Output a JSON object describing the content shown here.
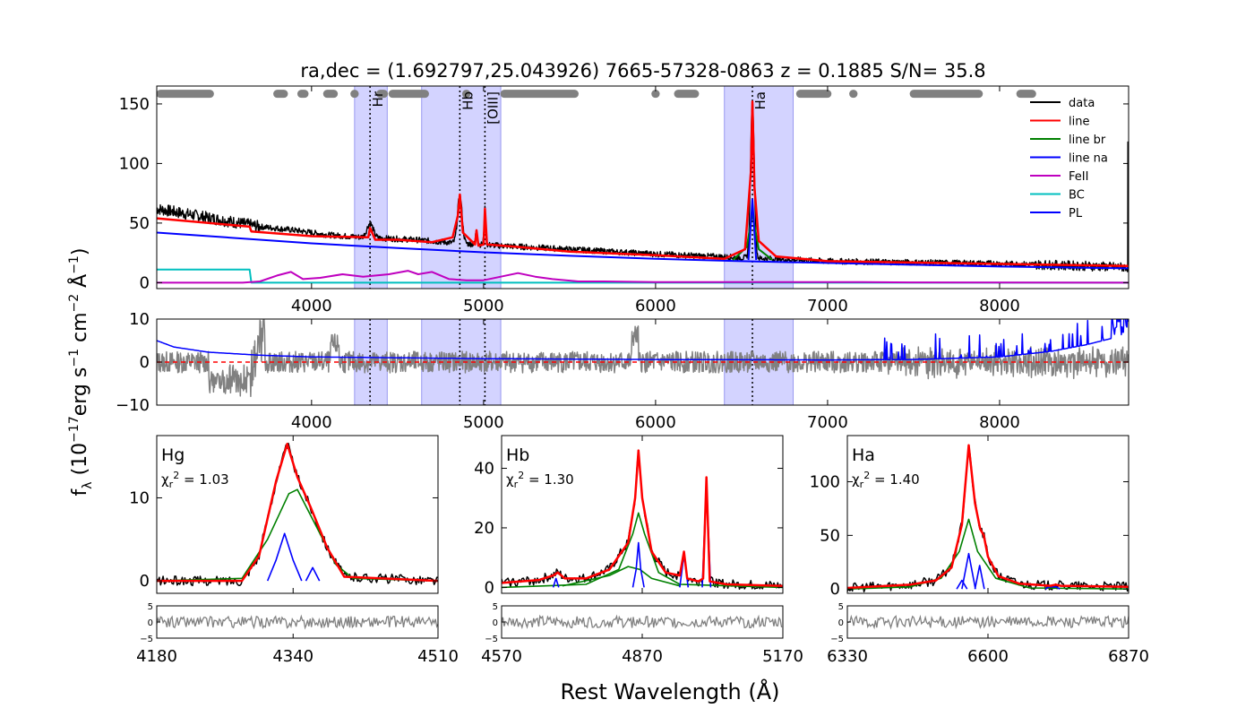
{
  "figure": {
    "title": "ra,dec = (1.692797,25.043926)   7665-57328-0863   z = 0.1885   S/N= 35.8",
    "ylabel_main": "f",
    "ylabel_sub": "λ",
    "ylabel_rest_a": " (10",
    "ylabel_exp_a": "−17",
    "ylabel_rest_b": "erg s",
    "ylabel_exp_b": "−1",
    "ylabel_rest_c": " cm",
    "ylabel_exp_c": "−2",
    "ylabel_rest_d": " Å",
    "ylabel_exp_d": "−1",
    "ylabel_rest_e": ")",
    "xlabel": "Rest Wavelength (Å)"
  },
  "colors": {
    "data": "#000000",
    "line": "#ff0000",
    "line_br": "#008000",
    "line_na": "#0000ff",
    "feii": "#bf00bf",
    "bc": "#00bfbf",
    "pl": "#0000ff",
    "residual": "#808080",
    "window": "#ccccff",
    "mask": "#808080"
  },
  "chart_data": [
    {
      "id": "main",
      "type": "line",
      "xlim": [
        3100,
        8750
      ],
      "ylim": [
        -5,
        165
      ],
      "xticks": [
        4000,
        5000,
        6000,
        7000,
        8000
      ],
      "yticks": [
        0,
        50,
        100,
        150
      ],
      "fit_windows": [
        [
          4250,
          4440
        ],
        [
          4640,
          5100
        ],
        [
          6400,
          6800
        ]
      ],
      "mask_segments": [
        [
          3100,
          3430
        ],
        [
          3780,
          3860
        ],
        [
          3920,
          3980
        ],
        [
          4070,
          4150
        ],
        [
          4230,
          4270
        ],
        [
          4400,
          4420
        ],
        [
          4450,
          4680
        ],
        [
          4880,
          4920
        ],
        [
          5100,
          5550
        ],
        [
          5980,
          6020
        ],
        [
          6110,
          6250
        ],
        [
          6820,
          7020
        ],
        [
          7130,
          7170
        ],
        [
          7480,
          7900
        ],
        [
          8100,
          8210
        ]
      ],
      "line_markers": [
        {
          "x": 4340,
          "label": "Hr"
        },
        {
          "x": 4862,
          "label": "Hb"
        },
        {
          "x": 5008,
          "label": "[OIII]"
        },
        {
          "x": 6563,
          "label": "Ha"
        }
      ],
      "legend": [
        "data",
        "line",
        "line br",
        "line na",
        "FeII",
        "BC",
        "PL"
      ],
      "series": {
        "data_trend": [
          [
            3100,
            62
          ],
          [
            3300,
            57
          ],
          [
            3500,
            52
          ],
          [
            3700,
            47
          ],
          [
            3900,
            44
          ],
          [
            4100,
            40
          ],
          [
            4300,
            38
          ],
          [
            4600,
            36
          ],
          [
            4860,
            33
          ],
          [
            5100,
            31
          ],
          [
            5500,
            28
          ],
          [
            6000,
            24
          ],
          [
            6500,
            21
          ],
          [
            7000,
            18
          ],
          [
            7500,
            17
          ],
          [
            8000,
            16
          ],
          [
            8500,
            14
          ],
          [
            8700,
            13
          ]
        ],
        "pl": [
          [
            3100,
            42
          ],
          [
            3500,
            38
          ],
          [
            4000,
            33
          ],
          [
            4500,
            29
          ],
          [
            5000,
            25.5
          ],
          [
            5500,
            22.5
          ],
          [
            6000,
            20
          ],
          [
            6500,
            18
          ],
          [
            7000,
            16.5
          ],
          [
            7500,
            15
          ],
          [
            8000,
            13.5
          ],
          [
            8500,
            12.5
          ],
          [
            8750,
            12
          ]
        ],
        "bc": [
          [
            3100,
            11
          ],
          [
            3640,
            11
          ],
          [
            3650,
            0
          ],
          [
            8750,
            0
          ]
        ],
        "feii": [
          [
            3100,
            0
          ],
          [
            3600,
            0
          ],
          [
            3700,
            1
          ],
          [
            3800,
            6
          ],
          [
            3880,
            9
          ],
          [
            3950,
            3
          ],
          [
            4050,
            4
          ],
          [
            4180,
            7
          ],
          [
            4300,
            5
          ],
          [
            4450,
            7
          ],
          [
            4560,
            10
          ],
          [
            4620,
            7
          ],
          [
            4700,
            9
          ],
          [
            4800,
            3
          ],
          [
            4900,
            2
          ],
          [
            5000,
            2
          ],
          [
            5100,
            5
          ],
          [
            5200,
            8
          ],
          [
            5300,
            5
          ],
          [
            5400,
            3
          ],
          [
            5550,
            1
          ],
          [
            5700,
            1
          ],
          [
            6000,
            0.5
          ],
          [
            6600,
            0.5
          ],
          [
            7200,
            0.5
          ],
          [
            7500,
            0.2
          ],
          [
            8750,
            0
          ]
        ],
        "line_red": [
          [
            3100,
            54
          ],
          [
            3640,
            47
          ],
          [
            3650,
            43
          ],
          [
            4000,
            39
          ],
          [
            4330,
            38
          ],
          [
            4340,
            46
          ],
          [
            4370,
            36
          ],
          [
            4500,
            36
          ],
          [
            4700,
            34
          ],
          [
            4820,
            38
          ],
          [
            4850,
            56
          ],
          [
            4862,
            74
          ],
          [
            4880,
            42
          ],
          [
            4950,
            32
          ],
          [
            4959,
            44
          ],
          [
            4970,
            31
          ],
          [
            5000,
            32
          ],
          [
            5008,
            62
          ],
          [
            5020,
            32
          ],
          [
            5200,
            30
          ],
          [
            5500,
            26
          ],
          [
            6000,
            23
          ],
          [
            6400,
            20
          ],
          [
            6520,
            28
          ],
          [
            6555,
            95
          ],
          [
            6563,
            152
          ],
          [
            6575,
            80
          ],
          [
            6600,
            35
          ],
          [
            6700,
            22
          ],
          [
            7000,
            18
          ],
          [
            8750,
            14
          ]
        ],
        "line_br": [
          [
            6450,
            19
          ],
          [
            6530,
            30
          ],
          [
            6563,
            58
          ],
          [
            6600,
            28
          ],
          [
            6680,
            19
          ]
        ],
        "line_na": [
          [
            6540,
            19
          ],
          [
            6563,
            70
          ],
          [
            6585,
            19
          ]
        ]
      },
      "peaks": [
        {
          "x": 4340,
          "height": 12,
          "width": 30
        },
        {
          "x": 4862,
          "height": 40,
          "width": 22
        },
        {
          "x": 4959,
          "height": 13,
          "width": 8
        },
        {
          "x": 5008,
          "height": 30,
          "width": 8
        },
        {
          "x": 6563,
          "height": 130,
          "width": 18
        }
      ]
    },
    {
      "id": "residual_main",
      "type": "line",
      "xlim": [
        3100,
        8750
      ],
      "ylim": [
        -10,
        10
      ],
      "xticks": [
        4000,
        5000,
        6000,
        7000,
        8000
      ],
      "yticks": [
        -10,
        0,
        10
      ],
      "fit_windows": [
        [
          4250,
          4440
        ],
        [
          4640,
          5100
        ],
        [
          6400,
          6800
        ]
      ],
      "line_markers": [
        {
          "x": 4340
        },
        {
          "x": 4862
        },
        {
          "x": 5008
        },
        {
          "x": 6563
        }
      ],
      "series": {
        "pl_curve": [
          [
            3100,
            5
          ],
          [
            3200,
            3.5
          ],
          [
            3400,
            2.3
          ],
          [
            3700,
            1.6
          ],
          [
            4000,
            1.2
          ],
          [
            4500,
            1.0
          ],
          [
            5000,
            0.8
          ],
          [
            6000,
            0.6
          ],
          [
            7000,
            0.5
          ],
          [
            7500,
            0.6
          ],
          [
            8000,
            1.2
          ],
          [
            8300,
            2.5
          ],
          [
            8500,
            4
          ],
          [
            8700,
            6
          ],
          [
            8750,
            7
          ]
        ],
        "residual_zero": 0
      }
    },
    {
      "id": "Hg",
      "type": "line",
      "label": "Hg",
      "chi2": "1.03",
      "xlim": [
        4180,
        4510
      ],
      "ylim": [
        -1.5,
        17.5
      ],
      "xticks": [
        4180,
        4340,
        4510
      ],
      "yticks": [
        0,
        10
      ],
      "series": {
        "line": [
          [
            4180,
            0
          ],
          [
            4280,
            0
          ],
          [
            4300,
            3
          ],
          [
            4320,
            12
          ],
          [
            4333,
            16.5
          ],
          [
            4345,
            12.5
          ],
          [
            4360,
            9
          ],
          [
            4380,
            4
          ],
          [
            4400,
            0.5
          ],
          [
            4510,
            0
          ]
        ],
        "line_br": [
          [
            4180,
            0
          ],
          [
            4280,
            0.3
          ],
          [
            4310,
            5
          ],
          [
            4335,
            10.5
          ],
          [
            4345,
            11
          ],
          [
            4365,
            7
          ],
          [
            4390,
            2
          ],
          [
            4410,
            0.3
          ],
          [
            4510,
            0
          ]
        ],
        "line_na_1": [
          [
            4310,
            0
          ],
          [
            4320,
            2.5
          ],
          [
            4330,
            5.7
          ],
          [
            4340,
            2.5
          ],
          [
            4350,
            0
          ]
        ],
        "line_na_2": [
          [
            4355,
            0
          ],
          [
            4363,
            1.6
          ],
          [
            4371,
            0
          ]
        ]
      }
    },
    {
      "id": "Hb",
      "type": "line",
      "label": "Hb",
      "chi2": "1.30",
      "xlim": [
        4570,
        5170
      ],
      "ylim": [
        -2,
        51
      ],
      "xticks": [
        4570,
        4870,
        5170
      ],
      "yticks": [
        0,
        20,
        40
      ],
      "series": {
        "line": [
          [
            4570,
            1.5
          ],
          [
            4650,
            2.5
          ],
          [
            4680,
            4
          ],
          [
            4690,
            5
          ],
          [
            4705,
            3
          ],
          [
            4750,
            3
          ],
          [
            4800,
            6
          ],
          [
            4840,
            15
          ],
          [
            4855,
            30
          ],
          [
            4862,
            46
          ],
          [
            4870,
            30
          ],
          [
            4890,
            12
          ],
          [
            4920,
            5
          ],
          [
            4950,
            4
          ],
          [
            4959,
            12
          ],
          [
            4966,
            3
          ],
          [
            4990,
            2
          ],
          [
            5000,
            3
          ],
          [
            5007,
            37
          ],
          [
            5014,
            2
          ],
          [
            5050,
            1
          ],
          [
            5170,
            0.5
          ]
        ],
        "line_br": [
          [
            4570,
            0
          ],
          [
            4750,
            1
          ],
          [
            4820,
            6
          ],
          [
            4850,
            18
          ],
          [
            4862,
            25
          ],
          [
            4875,
            18
          ],
          [
            4905,
            5
          ],
          [
            4950,
            1
          ],
          [
            5170,
            0
          ]
        ],
        "line_br_2": [
          [
            4700,
            0.5
          ],
          [
            4800,
            4
          ],
          [
            4840,
            7
          ],
          [
            4865,
            6
          ],
          [
            4890,
            3
          ],
          [
            4950,
            0.5
          ]
        ],
        "line_na": [
          [
            4850,
            0
          ],
          [
            4857,
            6
          ],
          [
            4862,
            15
          ],
          [
            4867,
            6
          ],
          [
            4874,
            0
          ]
        ],
        "line_na_o3a": [
          [
            4950,
            0
          ],
          [
            4959,
            11
          ],
          [
            4968,
            0
          ]
        ],
        "line_na_o3b": [
          [
            4998,
            0
          ],
          [
            5007,
            36
          ],
          [
            5016,
            0
          ]
        ],
        "line_na_fe": [
          [
            4680,
            0
          ],
          [
            4686,
            3
          ],
          [
            4692,
            0
          ]
        ]
      }
    },
    {
      "id": "Ha",
      "type": "line",
      "label": "Ha",
      "chi2": "1.40",
      "xlim": [
        6330,
        6870
      ],
      "ylim": [
        -4,
        143
      ],
      "xticks": [
        6330,
        6600,
        6870
      ],
      "yticks": [
        0,
        50,
        100
      ],
      "series": {
        "line": [
          [
            6330,
            1
          ],
          [
            6450,
            4
          ],
          [
            6500,
            8
          ],
          [
            6530,
            20
          ],
          [
            6550,
            60
          ],
          [
            6563,
            134
          ],
          [
            6575,
            80
          ],
          [
            6585,
            56
          ],
          [
            6592,
            50
          ],
          [
            6600,
            30
          ],
          [
            6620,
            12
          ],
          [
            6660,
            5
          ],
          [
            6720,
            3
          ],
          [
            6730,
            4
          ],
          [
            6740,
            3
          ],
          [
            6870,
            2
          ]
        ],
        "line_br": [
          [
            6330,
            0
          ],
          [
            6450,
            2
          ],
          [
            6510,
            10
          ],
          [
            6545,
            35
          ],
          [
            6563,
            65
          ],
          [
            6580,
            35
          ],
          [
            6615,
            10
          ],
          [
            6680,
            1
          ],
          [
            6870,
            0
          ]
        ],
        "line_na": [
          [
            6550,
            0
          ],
          [
            6563,
            33
          ],
          [
            6576,
            0
          ]
        ],
        "line_na_2": [
          [
            6540,
            0
          ],
          [
            6550,
            8
          ],
          [
            6560,
            0
          ]
        ],
        "line_na_3": [
          [
            6575,
            0
          ],
          [
            6584,
            22
          ],
          [
            6593,
            0
          ]
        ],
        "line_na_4": [
          [
            6710,
            0
          ],
          [
            6717,
            2
          ],
          [
            6731,
            2
          ],
          [
            6738,
            0
          ]
        ]
      }
    }
  ]
}
